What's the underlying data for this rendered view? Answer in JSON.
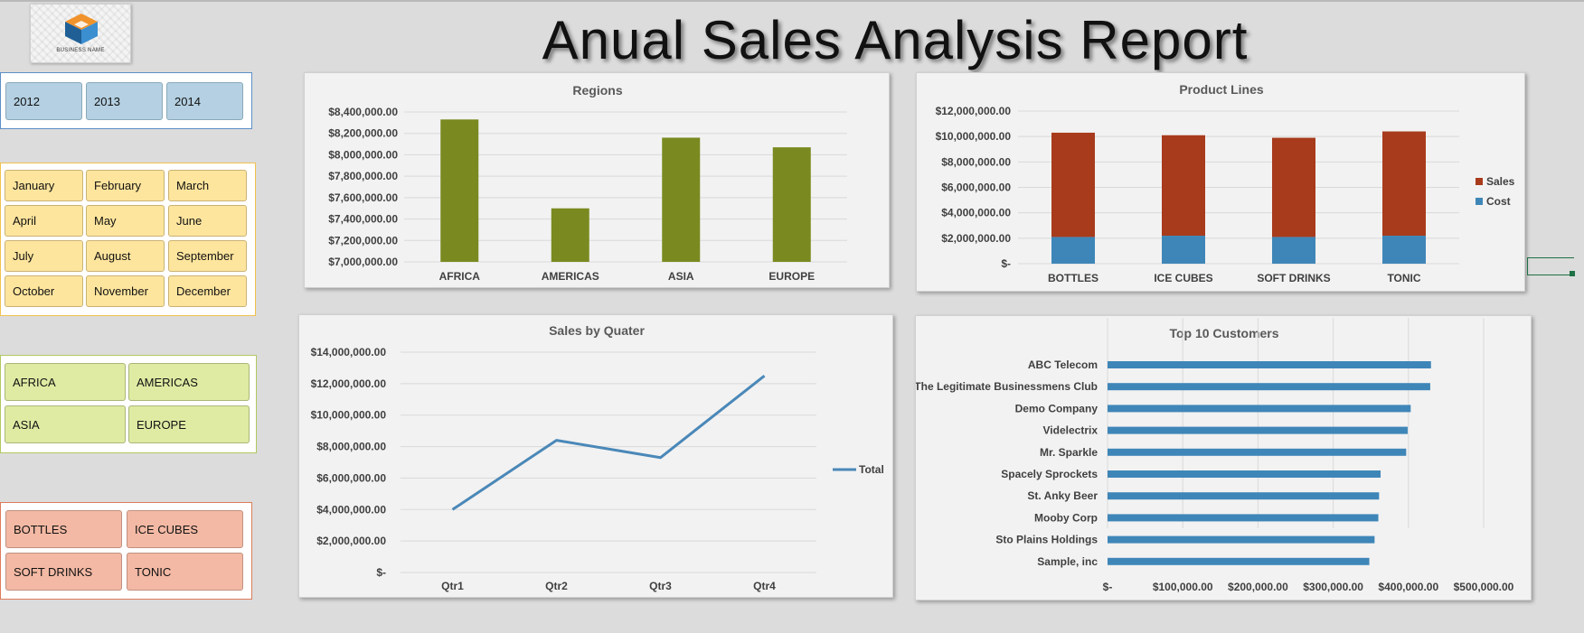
{
  "title": "Anual Sales Analysis Report",
  "logo": {
    "icon": "cube-logo-icon",
    "text": "BUSINESS NAME"
  },
  "slicers": {
    "years": [
      "2012",
      "2013",
      "2014"
    ],
    "months": [
      "January",
      "February",
      "March",
      "April",
      "May",
      "June",
      "July",
      "August",
      "September",
      "October",
      "November",
      "December"
    ],
    "regions": [
      "AFRICA",
      "AMERICAS",
      "ASIA",
      "EUROPE"
    ],
    "products": [
      "BOTTLES",
      "ICE CUBES",
      "SOFT DRINKS",
      "TONIC"
    ]
  },
  "colors": {
    "regions_bar": "#7a8a20",
    "sales": "#a83b1c",
    "cost": "#3f86b8",
    "line": "#4a88b8",
    "customers_bar": "#3f86b8"
  },
  "chart_data": [
    {
      "id": "regions",
      "type": "bar",
      "title": "Regions",
      "categories": [
        "AFRICA",
        "AMERICAS",
        "ASIA",
        "EUROPE"
      ],
      "values": [
        8330000,
        7500000,
        8160000,
        8070000
      ],
      "ylim": [
        7000000,
        8400000
      ],
      "yticks": [
        7000000,
        7200000,
        7400000,
        7600000,
        7800000,
        8000000,
        8200000,
        8400000
      ],
      "ytick_labels": [
        "$7,000,000.00",
        "$7,200,000.00",
        "$7,400,000.00",
        "$7,600,000.00",
        "$7,800,000.00",
        "$8,000,000.00",
        "$8,200,000.00",
        "$8,400,000.00"
      ],
      "grid": true
    },
    {
      "id": "product-lines",
      "type": "bar",
      "stacked": true,
      "title": "Product Lines",
      "categories": [
        "BOTTLES",
        "ICE CUBES",
        "SOFT DRINKS",
        "TONIC"
      ],
      "series": [
        {
          "name": "Cost",
          "values": [
            2100000,
            2200000,
            2100000,
            2200000
          ]
        },
        {
          "name": "Sales",
          "values": [
            8200000,
            7900000,
            7800000,
            8200000
          ]
        }
      ],
      "ylim": [
        0,
        12000000
      ],
      "yticks": [
        0,
        2000000,
        4000000,
        6000000,
        8000000,
        10000000,
        12000000
      ],
      "ytick_labels": [
        "$-",
        "$2,000,000.00",
        "$4,000,000.00",
        "$6,000,000.00",
        "$8,000,000.00",
        "$10,000,000.00",
        "$12,000,000.00"
      ],
      "legend": [
        "Sales",
        "Cost"
      ],
      "legend_position": "right",
      "grid": true
    },
    {
      "id": "sales-by-quarter",
      "type": "line",
      "title": "Sales by Quater",
      "categories": [
        "Qtr1",
        "Qtr2",
        "Qtr3",
        "Qtr4"
      ],
      "series": [
        {
          "name": "Total",
          "values": [
            4000000,
            8400000,
            7300000,
            12500000
          ]
        }
      ],
      "ylim": [
        0,
        14000000
      ],
      "yticks": [
        0,
        2000000,
        4000000,
        6000000,
        8000000,
        10000000,
        12000000,
        14000000
      ],
      "ytick_labels": [
        "$-",
        "$2,000,000.00",
        "$4,000,000.00",
        "$6,000,000.00",
        "$8,000,000.00",
        "$10,000,000.00",
        "$12,000,000.00",
        "$14,000,000.00"
      ],
      "legend_position": "right",
      "grid": true
    },
    {
      "id": "top-10-customers",
      "type": "bar",
      "orientation": "horizontal",
      "title": "Top 10 Customers",
      "categories": [
        "ABC Telecom",
        "The Legitimate Businessmens Club",
        "Demo Company",
        "Videlectrix",
        "Mr. Sparkle",
        "Spacely Sprockets",
        "St. Anky Beer",
        "Mooby Corp",
        "Sto Plains Holdings",
        "Sample, inc"
      ],
      "values": [
        430000,
        429000,
        403000,
        399000,
        397000,
        363000,
        361000,
        360000,
        355000,
        348000
      ],
      "xlim": [
        0,
        500000
      ],
      "xticks": [
        0,
        100000,
        200000,
        300000,
        400000,
        500000
      ],
      "xtick_labels": [
        "$-",
        "$100,000.00",
        "$200,000.00",
        "$300,000.00",
        "$400,000.00",
        "$500,000.00"
      ],
      "grid": true
    }
  ]
}
